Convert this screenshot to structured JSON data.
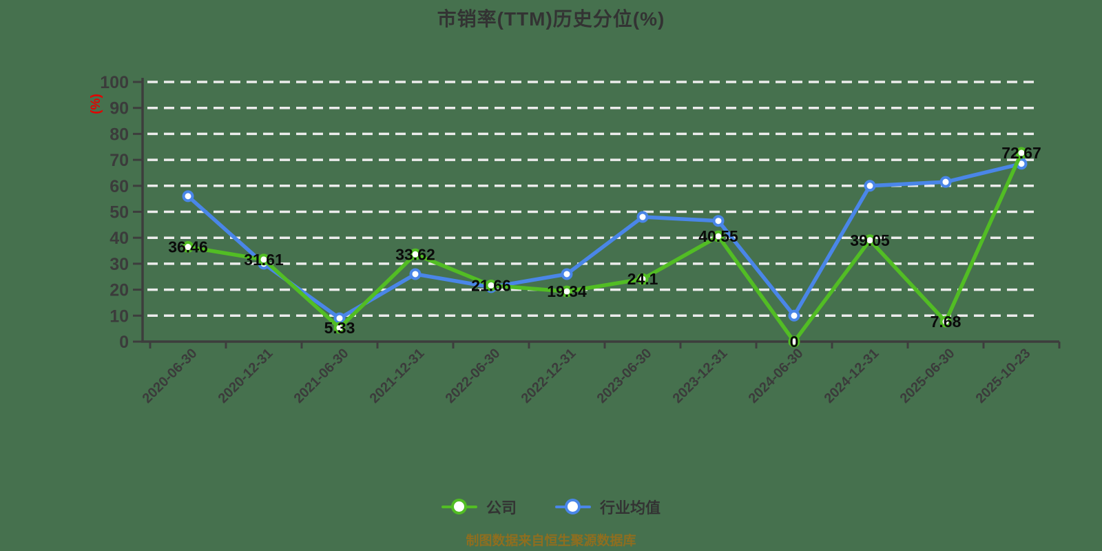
{
  "chart_data": {
    "type": "line",
    "title": "市销率(TTM)历史分位(%)",
    "y_axis_unit": "(%)",
    "xlabel": "",
    "ylabel": "(%)",
    "ylim": [
      0,
      100
    ],
    "y_ticks": [
      0,
      10,
      20,
      30,
      40,
      50,
      60,
      70,
      80,
      90,
      100
    ],
    "grid": "horizontal-dashed",
    "legend_position": "bottom",
    "footer": "制图数据来自恒生聚源数据库",
    "categories": [
      "2020-06-30",
      "2020-12-31",
      "2021-06-30",
      "2021-12-31",
      "2022-06-30",
      "2022-12-31",
      "2023-06-30",
      "2023-12-31",
      "2024-06-30",
      "2024-12-31",
      "2025-06-30",
      "2025-10-23"
    ],
    "series": [
      {
        "name": "公司",
        "color": "#52bd24",
        "marker": "circle-white-fill",
        "labels_shown": true,
        "values": [
          36.46,
          31.61,
          5.33,
          33.62,
          21.66,
          19.34,
          24.1,
          40.55,
          0,
          39.05,
          7.68,
          72.67
        ]
      },
      {
        "name": "行业均值",
        "color": "#4a86e8",
        "marker": "circle-white-fill",
        "labels_shown": false,
        "values": [
          56,
          30,
          9,
          26,
          21,
          26,
          48,
          46.5,
          10,
          60,
          61.5,
          68.5
        ]
      }
    ]
  },
  "colors": {
    "background": "#46714E",
    "title": "#333333",
    "axis": "#3d3d3d",
    "tick_label": "#3b3b3b",
    "grid": "#ececec",
    "data_label": "#0a0a0a",
    "y_unit": "#e60000",
    "footer": "#8f6e1f",
    "legend_text": "#333333"
  }
}
